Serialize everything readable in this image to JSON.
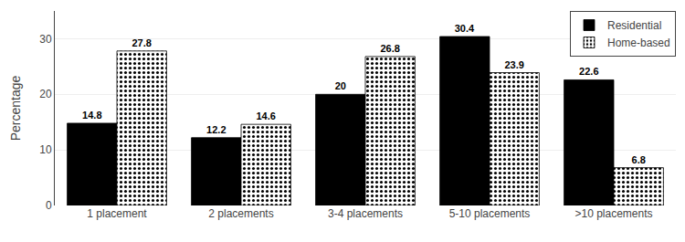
{
  "chart_data": {
    "type": "bar",
    "categories": [
      "1 placement",
      "2 placements",
      "3-4 placements",
      "5-10 placements",
      ">10 placements"
    ],
    "series": [
      {
        "name": "Residential",
        "color": "#000000",
        "values": [
          14.8,
          12.2,
          20.0,
          30.4,
          22.6
        ]
      },
      {
        "name": "Home-based",
        "color": "#ffffff",
        "values": [
          27.8,
          14.6,
          26.8,
          23.9,
          6.8
        ]
      }
    ],
    "ylabel": "Percentage",
    "ylim": [
      0,
      35
    ],
    "yticks": [
      0,
      10,
      20,
      30
    ],
    "grid": true,
    "legend": "upper right",
    "data_labels": true
  }
}
